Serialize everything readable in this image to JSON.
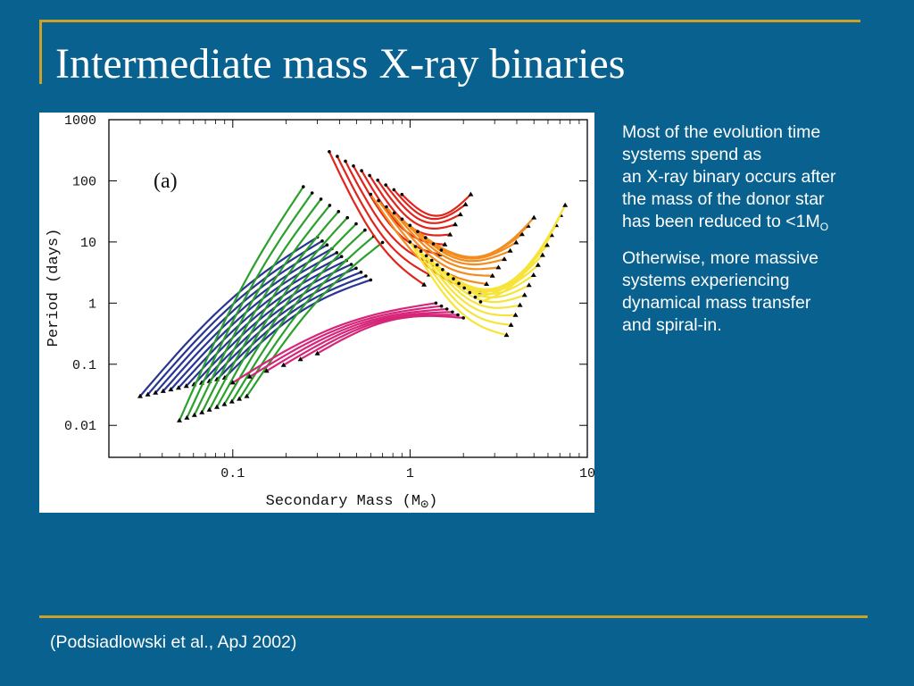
{
  "slide": {
    "title": "Intermediate mass X-ray binaries",
    "citation": "(Podsiadlowski et al., ApJ 2002)",
    "colors": {
      "background": "#08618f",
      "rule": "#c9a227",
      "text": "#ffffff"
    }
  },
  "body": {
    "p1": {
      "line1": "Most of the evolution time",
      "line2": "systems spend as",
      "line3": "an X-ray binary occurs after",
      "line4": "the mass of the donor star",
      "line5_prefix": "has been reduced to <1M",
      "line5_sub": "O"
    },
    "p2": {
      "line1": "Otherwise, more massive",
      "line2": "systems experiencing",
      "line3": "dynamical mass transfer",
      "line4": "and spiral-in."
    }
  },
  "figure": {
    "panel_label": "(a)",
    "xlabel": "Secondary Mass (M",
    "xlabel_symbol": "⊙",
    "xlabel_suffix": ")",
    "ylabel": "Period (days)",
    "x_ticks": [
      "0.1",
      "1",
      "10"
    ],
    "y_ticks": [
      "1000",
      "100",
      "10",
      "1",
      "0.1",
      "0.01"
    ],
    "x_scale": "log",
    "y_scale": "log",
    "xlim": [
      0.02,
      10
    ],
    "ylim": [
      0.003,
      1000
    ],
    "track_colors": {
      "red": "#e0261c",
      "orange": "#f28c1e",
      "yellow": "#f6e43a",
      "green": "#2ca02c",
      "navy": "#283593",
      "magenta": "#d6267a"
    },
    "track_groups": [
      {
        "color": "navy",
        "count": 12,
        "start_mass": [
          0.3,
          0.6
        ],
        "start_period": [
          1.2,
          12
        ],
        "end_mass": [
          0.03,
          0.09
        ],
        "end_period": [
          0.03,
          0.06
        ]
      },
      {
        "color": "green",
        "count": 10,
        "start_mass": [
          0.25,
          0.7
        ],
        "start_period": [
          4,
          80
        ],
        "end_mass": [
          0.05,
          0.12
        ],
        "end_period": [
          0.012,
          0.03
        ]
      },
      {
        "color": "magenta",
        "count": 6,
        "start_mass": [
          1.4,
          2.0
        ],
        "start_period": [
          0.45,
          1.0
        ],
        "end_mass": [
          0.1,
          0.3
        ],
        "end_period": [
          0.05,
          0.15
        ]
      },
      {
        "color": "red",
        "count": 10,
        "start_mass": [
          0.35,
          0.9
        ],
        "start_period": [
          30,
          300
        ],
        "end_mass": [
          1.2,
          2.2
        ],
        "end_period": [
          2,
          60
        ]
      },
      {
        "color": "orange",
        "count": 10,
        "start_mass": [
          0.6,
          1.5
        ],
        "start_period": [
          3,
          60
        ],
        "end_mass": [
          2.5,
          5.0
        ],
        "end_period": [
          1.5,
          25
        ]
      },
      {
        "color": "yellow",
        "count": 14,
        "start_mass": [
          1.0,
          2.5
        ],
        "start_period": [
          0.4,
          10
        ],
        "end_mass": [
          3.5,
          7.5
        ],
        "end_period": [
          0.3,
          40
        ]
      }
    ]
  }
}
